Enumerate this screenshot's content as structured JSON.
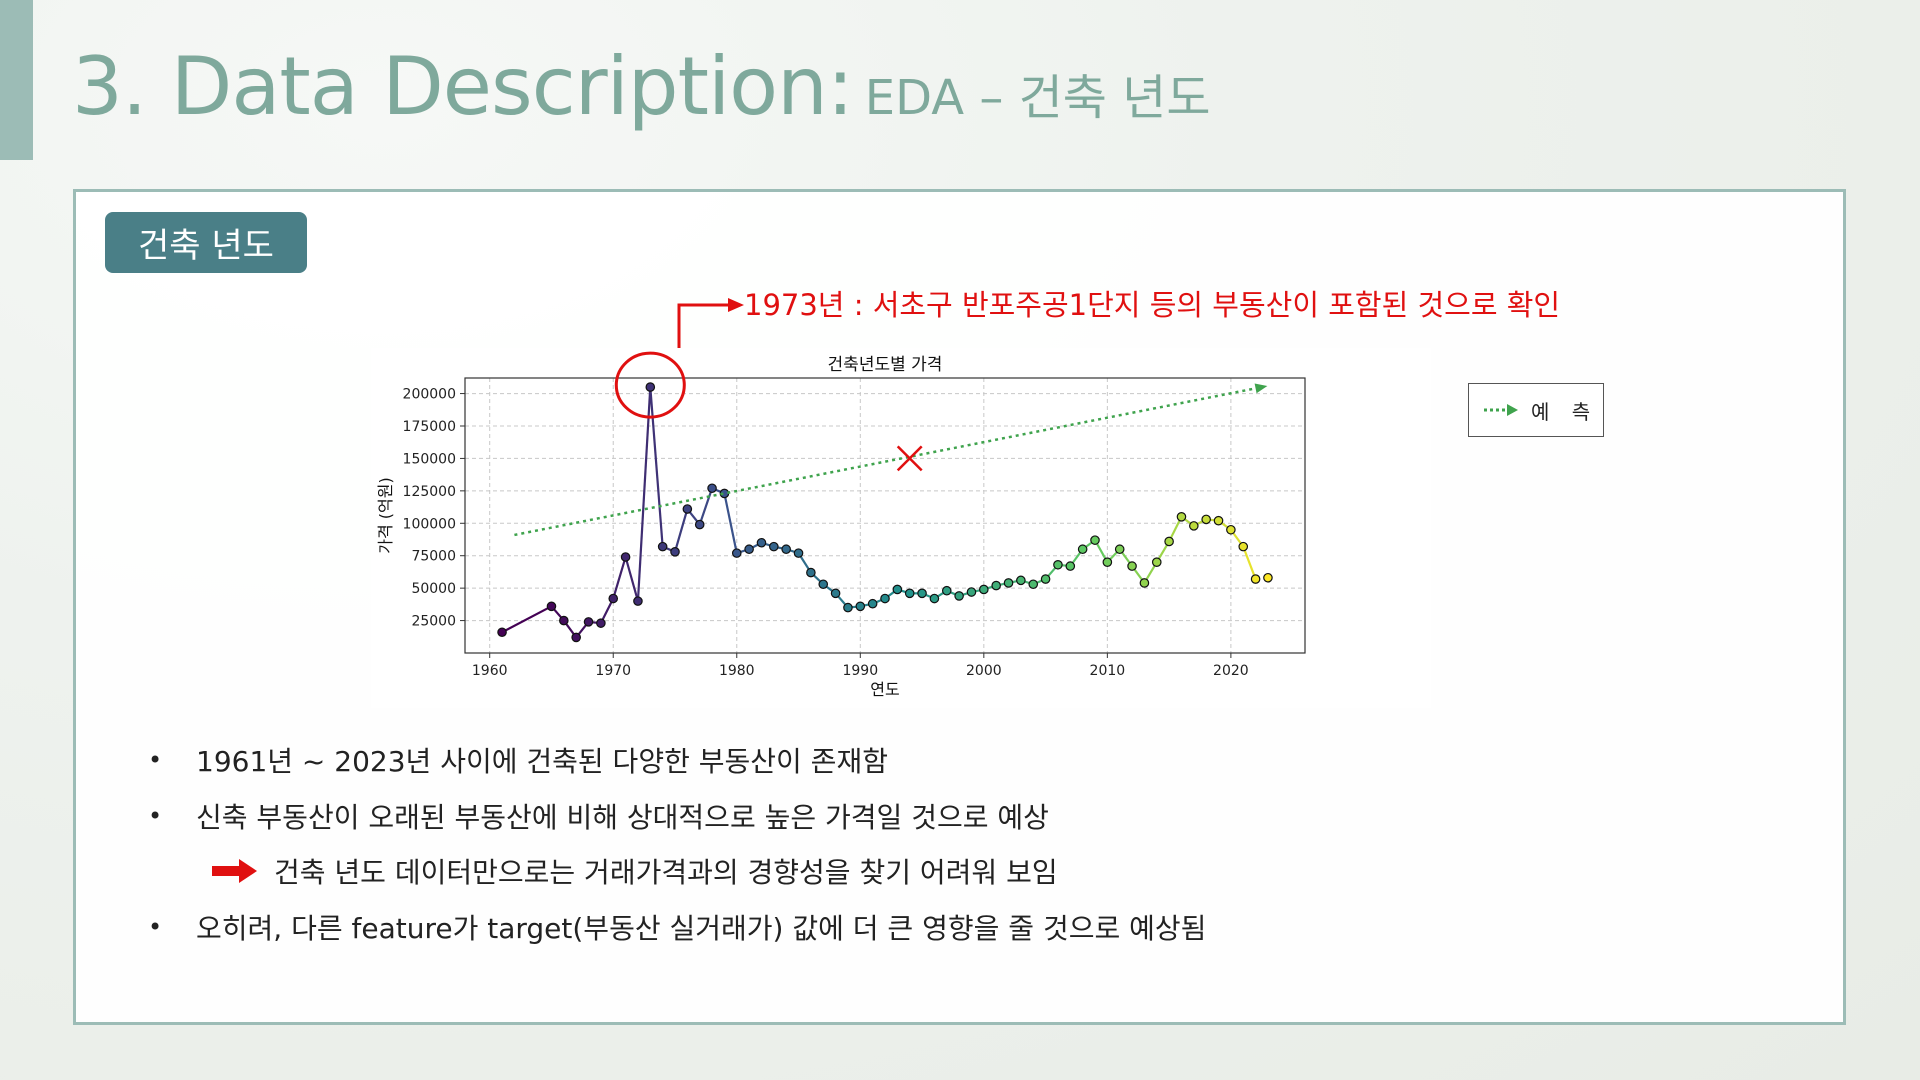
{
  "slide": {
    "title_main": "3. Data Description:",
    "title_sub": "EDA – 건축 년도",
    "badge": "건축 년도",
    "callout": "1973년 : 서초구 반포주공1단지 등의 부동산이 포함된 것으로 확인",
    "legend_label": "예 측",
    "bullets": [
      "1961년 ~ 2023년 사이에 건축된 다양한 부동산이 존재함",
      "신축 부동산이 오래된 부동산에 비해 상대적으로 높은 가격일 것으로 예상",
      "건축 년도 데이터만으로는 거래가격과의 경향성을 찾기 어려워 보임",
      "오히려, 다른 feature가 target(부동산 실거래가) 값에 더 큰 영향을 줄 것으로 예상됨"
    ],
    "bullet_symbol": "•"
  },
  "colors": {
    "accent": "#9cbcb6",
    "title": "#7fa99c",
    "badge": "#4a7f87",
    "callout_red": "#e01010",
    "trend_green": "#3fa34d"
  },
  "chart_data": {
    "type": "line",
    "title": "건축년도별 가격",
    "xlabel": "연도",
    "ylabel": "가격 (억원)",
    "xlim": [
      1958,
      2026
    ],
    "ylim": [
      0,
      212000
    ],
    "xticks": [
      1960,
      1970,
      1980,
      1990,
      2000,
      2010,
      2020
    ],
    "yticks": [
      25000,
      50000,
      75000,
      100000,
      125000,
      150000,
      175000,
      200000
    ],
    "grid": true,
    "series": [
      {
        "x": [
          1961,
          1965,
          1966,
          1967,
          1968,
          1969,
          1970,
          1971,
          1972,
          1973,
          1974,
          1975,
          1976,
          1977,
          1978,
          1979,
          1980,
          1981,
          1982,
          1983,
          1984,
          1985,
          1986,
          1987,
          1988,
          1989,
          1990,
          1991,
          1992,
          1993,
          1994,
          1995,
          1996,
          1997,
          1998,
          1999,
          2000,
          2001,
          2002,
          2003,
          2004,
          2005,
          2006,
          2007,
          2008,
          2009,
          2010,
          2011,
          2012,
          2013,
          2014,
          2015,
          2016,
          2017,
          2018,
          2019,
          2020,
          2021,
          2022,
          2023
        ],
        "values": [
          16000,
          36000,
          25000,
          12000,
          24000,
          23000,
          42000,
          74000,
          40000,
          205000,
          82000,
          78000,
          111000,
          99000,
          127000,
          123000,
          77000,
          80000,
          85000,
          82000,
          80000,
          77000,
          62000,
          53000,
          46000,
          35000,
          36000,
          38000,
          42000,
          49000,
          46000,
          46000,
          42000,
          48000,
          44000,
          47000,
          49000,
          52000,
          54000,
          56000,
          53000,
          57000,
          68000,
          67000,
          80000,
          87000,
          70000,
          80000,
          67000,
          54000,
          70000,
          86000,
          105000,
          98000,
          103000,
          102000,
          95000,
          82000,
          57000,
          58000
        ]
      }
    ],
    "trend": {
      "name": "예 측",
      "x": [
        1962,
        2022
      ],
      "values": [
        91000,
        204000
      ]
    },
    "highlight": {
      "x": 1973,
      "y": 205000
    },
    "cross_marker": {
      "x": 1994,
      "y": 150000
    }
  }
}
